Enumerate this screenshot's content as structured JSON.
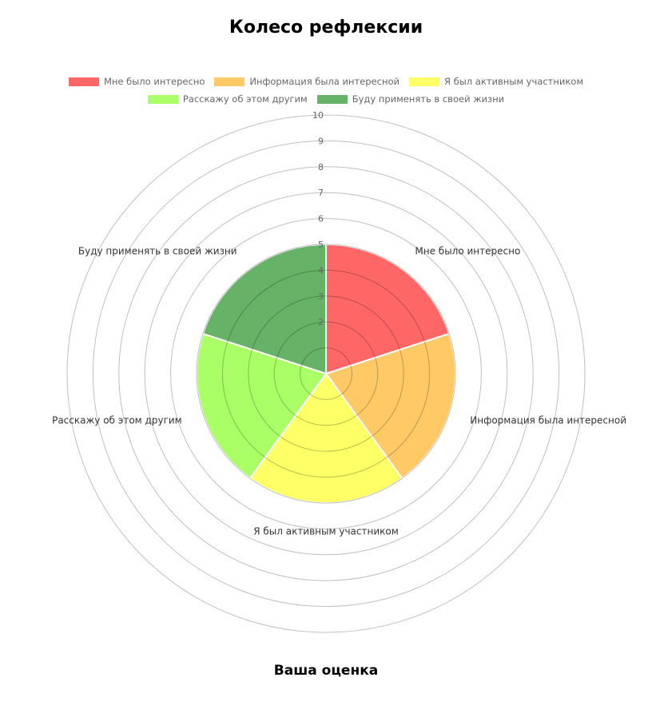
{
  "title": "Колесо рефлексии",
  "footer": "Ваша оценка",
  "chart_data": {
    "type": "polarArea",
    "title": "Колесо рефлексии",
    "categories": [
      "Мне было интересно",
      "Информация была интересной",
      "Я был активным участником",
      "Расскажу об этом другим",
      "Буду применять в своей жизни"
    ],
    "values": [
      5,
      5,
      5,
      5,
      5
    ],
    "colors": [
      "#FF6666",
      "#FFC966",
      "#FFFF66",
      "#AAFF66",
      "#66B266"
    ],
    "rlim": [
      0,
      10
    ],
    "ticks": [
      1,
      2,
      3,
      4,
      5,
      6,
      7,
      8,
      9,
      10
    ],
    "tick_labels": [
      "",
      "2",
      "3",
      "4",
      "5",
      "6",
      "7",
      "8",
      "9",
      "10"
    ],
    "legend_position": "top",
    "grid": true
  }
}
